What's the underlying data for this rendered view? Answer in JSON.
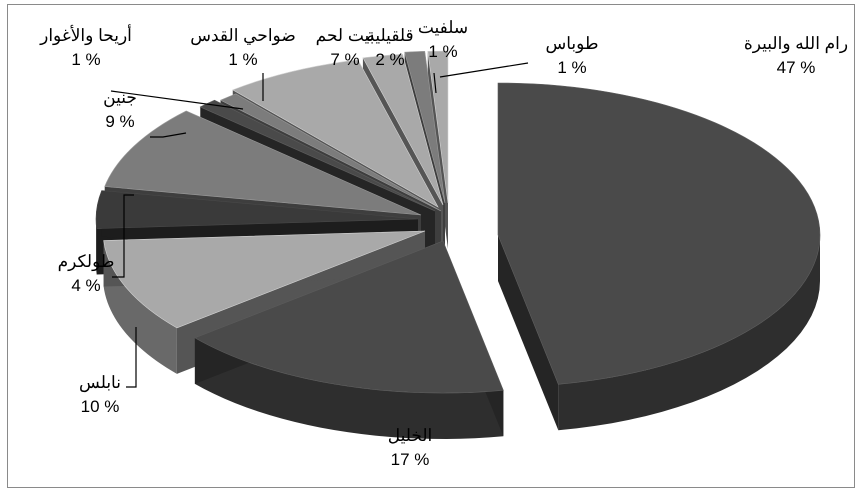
{
  "chart_data": {
    "type": "pie",
    "style": "3d-exploded",
    "legend": "none",
    "colors": {
      "dark": "#4a4a4a",
      "mid": "#7c7c7c",
      "light": "#a9a9a9",
      "darkest": "#3a3a3a"
    },
    "slices": [
      {
        "label": "رام الله والبيرة",
        "value": 47,
        "value_label": "47 %",
        "shade": "dark"
      },
      {
        "label": "الخليل",
        "value": 17,
        "value_label": "17 %",
        "shade": "dark"
      },
      {
        "label": "نابلس",
        "value": 10,
        "value_label": "10 %",
        "shade": "light"
      },
      {
        "label": "طولكرم",
        "value": 4,
        "value_label": "4 %",
        "shade": "darkest"
      },
      {
        "label": "جنين",
        "value": 9,
        "value_label": "9 %",
        "shade": "mid"
      },
      {
        "label": "أريحا والأغوار",
        "value": 1,
        "value_label": "1 %",
        "shade": "dark"
      },
      {
        "label": "ضواحي القدس",
        "value": 1,
        "value_label": "1 %",
        "shade": "mid"
      },
      {
        "label": "بيت لحم",
        "value": 7,
        "value_label": "7 %",
        "shade": "light"
      },
      {
        "label": "قلقيلية",
        "value": 2,
        "value_label": "2 %",
        "shade": "light"
      },
      {
        "label": "سلفيت",
        "value": 1,
        "value_label": "1 %",
        "shade": "mid"
      },
      {
        "label": "طوباس",
        "value": 1,
        "value_label": "1 %",
        "shade": "light"
      }
    ]
  }
}
